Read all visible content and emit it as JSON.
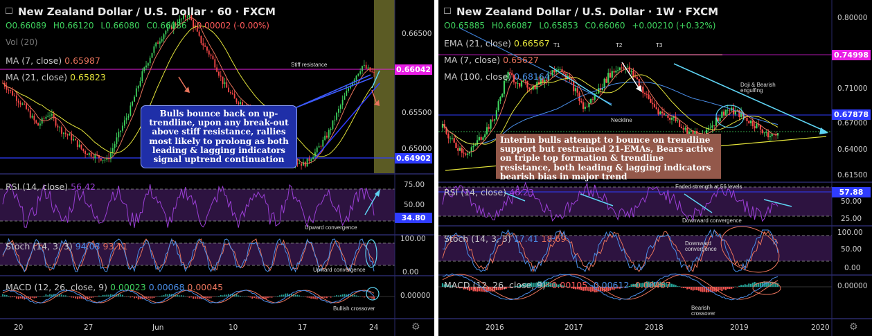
{
  "left": {
    "title": "New Zealand Dollar / U.S. Dollar · 60 · FXCM",
    "ohlc": {
      "o": "O0.66089",
      "h": "H0.66120",
      "l": "L0.66080",
      "c": "C0.66086",
      "chg": "-0.00002 (-0.00%)"
    },
    "vol_label": "Vol (20)",
    "ma7_label": "MA (7, close)",
    "ma7_value": "0.65987",
    "ma21_label": "MA (21, close)",
    "ma21_value": "0.65823",
    "rsi_label": "RSI (14, close)",
    "rsi_value": "56.42",
    "stoch_label": "Stoch (14, 3, 3)",
    "stoch_k": "94.08",
    "stoch_d": "93.11",
    "macd_label": "MACD (12, 26, close, 9)",
    "macd_hist": "0.00023",
    "macd_line": "0.00068",
    "macd_signal": "0.00045",
    "annotations": {
      "stiff": "Stiff resistance",
      "upconv1": "Upward convergence",
      "upconv2": "Upward convergence",
      "bull_cross": "Bullish crossover"
    },
    "callout": "Bulls bounce back on up-trendline, upon any break-out above stiff resistance, rallies most likely to prolong as both leading & lagging indicators signal uptrend continuation",
    "price_tags": {
      "resistance": "0.66042",
      "support": "0.64902",
      "rsi": "34.80"
    },
    "price_axis": [
      "0.66500",
      "0.65500",
      "0.65000"
    ],
    "rsi_axis": [
      "75.00",
      "50.00"
    ],
    "stoch_axis": [
      "100.00",
      "0.00"
    ],
    "macd_axis": [
      "0.00000"
    ],
    "time_axis": [
      "20",
      "27",
      "Jun",
      "10",
      "17",
      "24"
    ],
    "colors": {
      "resistance_tag": "#e91ee5",
      "support_tag": "#2f3cff",
      "rsi_tag": "#2f3cff",
      "ma7": "#e8735b",
      "ma21": "#e2e23a"
    }
  },
  "right": {
    "title": "New Zealand Dollar / U.S. Dollar · 1W · FXCM",
    "ohlc": {
      "o": "O0.65885",
      "h": "H0.66087",
      "l": "L0.65853",
      "c": "C0.66060",
      "chg": "+0.00210 (+0.32%)"
    },
    "ema21_label": "EMA (21, close)",
    "ema21_value": "0.66567",
    "ma7_label": "MA (7, close)",
    "ma7_value": "0.65627",
    "ma100_label": "MA (100, close)",
    "ma100_value": "0.68164",
    "rsi_label": "RSI (14, close)",
    "rsi_value": "46.23",
    "stoch_label": "Stoch (14, 3, 3)",
    "stoch_k": "17.41",
    "stoch_d": "18.69",
    "macd_label": "MACD (12, 26, close, 9)",
    "macd_hist": "-0.00105",
    "macd_line": "-0.00612",
    "macd_signal": "-0.00467",
    "annotations": {
      "t1": "T1",
      "t2": "T2",
      "t3": "T3",
      "neckline": "Neckline",
      "doji": "Doji & Bearish engulfing",
      "faded": "Faded strength at 56 levels",
      "downconv_rsi": "Downward convergence",
      "downconv_stoch": "Downward convergence",
      "bear_cross": "Bearish crossover"
    },
    "callout": "Interim bulls attempt to bounce on trendline support but restrained 21-EMAs, Bears active on triple top formation & trendline resistance, both leading & lagging indicators bearish bias in major trend",
    "price_tags": {
      "top": "0.74998",
      "neck": "0.67878",
      "rsi": "57.88"
    },
    "price_axis": [
      "0.80000",
      "0.71000",
      "0.67000",
      "0.64000",
      "0.61500"
    ],
    "rsi_axis": [
      "50.00",
      "25.00"
    ],
    "stoch_axis": [
      "100.00",
      "50.00",
      "0.00"
    ],
    "macd_axis": [
      "0.00000"
    ],
    "time_axis": [
      "2016",
      "2017",
      "2018",
      "2019",
      "2020"
    ],
    "colors": {
      "top_tag": "#e91ee5",
      "neck_tag": "#2f3cff",
      "rsi_tag": "#2f3cff",
      "ema21": "#e2e23a"
    }
  },
  "chart_data": [
    {
      "type": "candlestick",
      "title": "New Zealand Dollar / U.S. Dollar · 60 · FXCM",
      "x": [
        "20",
        "27",
        "Jun",
        "10",
        "17",
        "24"
      ],
      "close_path": [
        0.659,
        0.6575,
        0.656,
        0.654,
        0.6555,
        0.6535,
        0.6525,
        0.651,
        0.6505,
        0.65,
        0.653,
        0.656,
        0.66,
        0.663,
        0.665,
        0.666,
        0.667,
        0.664,
        0.662,
        0.659,
        0.657,
        0.6565,
        0.655,
        0.6545,
        0.652,
        0.65,
        0.6495,
        0.651,
        0.653,
        0.656,
        0.659,
        0.661,
        0.66
      ],
      "ylim": [
        0.6485,
        0.668
      ],
      "series": [
        {
          "name": "MA (7, close)",
          "values": "overlay"
        },
        {
          "name": "MA (21, close)",
          "values": "overlay"
        }
      ],
      "levels": {
        "stiff_resistance": 0.66042,
        "trend_support": 0.64902
      },
      "indicators": {
        "rsi": {
          "value": 56.42,
          "level": 34.8,
          "ylim": [
            25,
            80
          ]
        },
        "stoch": {
          "k": 94.08,
          "d": 93.11,
          "ylim": [
            0,
            100
          ]
        },
        "macd": {
          "hist": 0.00023,
          "macd": 0.00068,
          "signal": 0.00045
        }
      }
    },
    {
      "type": "candlestick",
      "title": "New Zealand Dollar / U.S. Dollar · 1W · FXCM",
      "x": [
        "2016",
        "2017",
        "2018",
        "2019",
        "2020"
      ],
      "close_path": [
        0.67,
        0.65,
        0.64,
        0.66,
        0.68,
        0.73,
        0.72,
        0.715,
        0.725,
        0.74,
        0.72,
        0.69,
        0.71,
        0.73,
        0.74,
        0.725,
        0.7,
        0.685,
        0.68,
        0.665,
        0.66,
        0.675,
        0.69,
        0.685,
        0.675,
        0.665,
        0.6606
      ],
      "ylim": [
        0.61,
        0.805
      ],
      "levels": {
        "triple_top": 0.74998,
        "neckline": 0.67878
      },
      "indicators": {
        "rsi": {
          "value": 46.23,
          "level": 57.88,
          "ylim": [
            20,
            70
          ]
        },
        "stoch": {
          "k": 17.41,
          "d": 18.69,
          "ylim": [
            0,
            100
          ]
        },
        "macd": {
          "hist": -0.00105,
          "macd": -0.00612,
          "signal": -0.00467
        }
      }
    }
  ]
}
